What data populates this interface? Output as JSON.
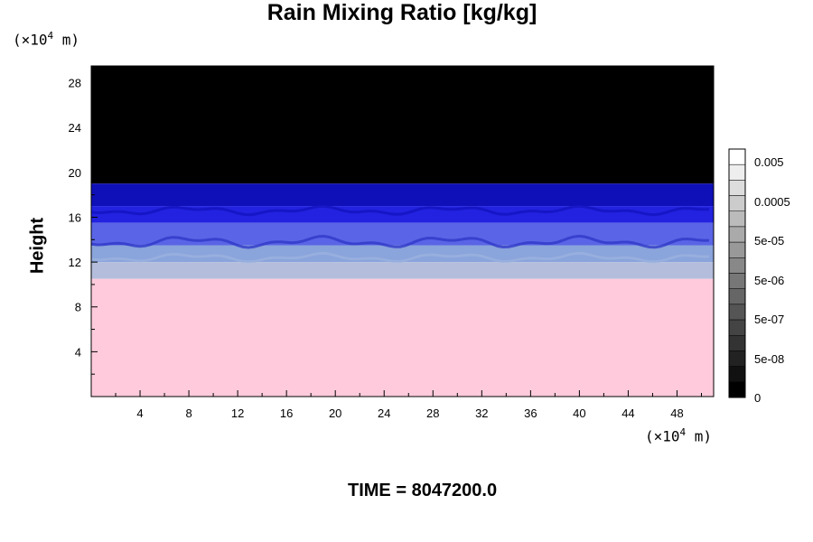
{
  "chart_data": {
    "type": "heatmap",
    "title": "Rain Mixing Ratio [kg/kg]",
    "xlabel": "",
    "ylabel": "Height",
    "x_unit_label": "(×10",
    "y_unit_label": "(×10",
    "unit_exponent": "4",
    "unit_suffix": " m)",
    "xlim": [
      0,
      51
    ],
    "ylim": [
      0,
      29.5
    ],
    "x_ticks": [
      4,
      8,
      12,
      16,
      20,
      24,
      28,
      32,
      36,
      40,
      44,
      48
    ],
    "y_ticks": [
      4,
      8,
      12,
      16,
      20,
      24,
      28
    ],
    "field_bands": [
      {
        "from": 19,
        "to": 29.5,
        "color": "#000000"
      },
      {
        "from": 17,
        "to": 19,
        "color": "#1010b8"
      },
      {
        "from": 15.5,
        "to": 17,
        "color": "#2222e0"
      },
      {
        "from": 13.5,
        "to": 15.5,
        "color": "#5a64e6"
      },
      {
        "from": 12,
        "to": 13.5,
        "color": "#8aa4dc"
      },
      {
        "from": 10.5,
        "to": 12,
        "color": "#b4bedc"
      },
      {
        "from": 0,
        "to": 10.5,
        "color": "#ffcbdc"
      }
    ],
    "colorbar_labels": [
      "0.005",
      "0.0005",
      "5e-05",
      "5e-06",
      "5e-07",
      "5e-08",
      "0"
    ],
    "colorbar_levels": 16,
    "grid": false
  },
  "footer": {
    "time_label": "TIME = 8047200.0"
  }
}
